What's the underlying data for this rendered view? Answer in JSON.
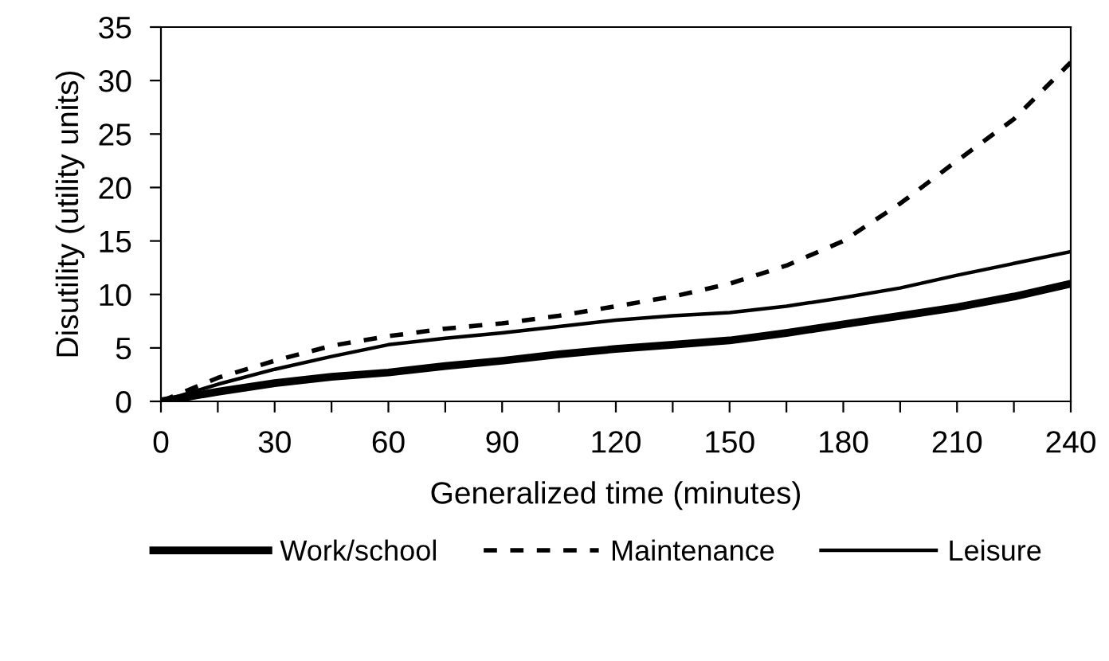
{
  "chart_data": {
    "type": "line",
    "xlabel": "Generalized time (minutes)",
    "ylabel": "Disutility (utility units)",
    "x": [
      0,
      15,
      30,
      45,
      60,
      75,
      90,
      105,
      120,
      135,
      150,
      165,
      180,
      195,
      210,
      225,
      240
    ],
    "xlim": [
      0,
      240
    ],
    "xticks": [
      0,
      {
        "value": 15,
        "label": null
      },
      30,
      {
        "value": 45,
        "label": null
      },
      60,
      {
        "value": 75,
        "label": null
      },
      90,
      {
        "value": 105,
        "label": null
      },
      120,
      {
        "value": 135,
        "label": null
      },
      150,
      {
        "value": 165,
        "label": null
      },
      180,
      {
        "value": 195,
        "label": null
      },
      210,
      {
        "value": 225,
        "label": null
      },
      240
    ],
    "ylim": [
      0,
      35
    ],
    "yticks": [
      0,
      5,
      10,
      15,
      20,
      25,
      30,
      35
    ],
    "grid": false,
    "legend": "bottom",
    "marker": "none",
    "series": [
      {
        "name": "Work/school",
        "color": "#000000",
        "line_style": "solid",
        "values": [
          0,
          0.9,
          1.7,
          2.3,
          2.7,
          3.3,
          3.8,
          4.4,
          4.9,
          5.3,
          5.7,
          6.4,
          7.2,
          8.0,
          8.8,
          9.8,
          11.0
        ]
      },
      {
        "name": "Maintenance",
        "color": "#000000",
        "line_style": "dashed",
        "values": [
          0,
          2.2,
          3.8,
          5.2,
          6.1,
          6.8,
          7.3,
          8.0,
          8.9,
          9.8,
          11.0,
          12.7,
          15.0,
          18.5,
          22.5,
          26.4,
          31.7
        ]
      },
      {
        "name": "Leisure",
        "color": "#000000",
        "line_style": "solid",
        "values": [
          0,
          1.6,
          3.0,
          4.2,
          5.3,
          5.9,
          6.4,
          7.0,
          7.6,
          8.0,
          8.3,
          8.9,
          9.7,
          10.6,
          11.8,
          12.9,
          14.0
        ]
      }
    ]
  }
}
